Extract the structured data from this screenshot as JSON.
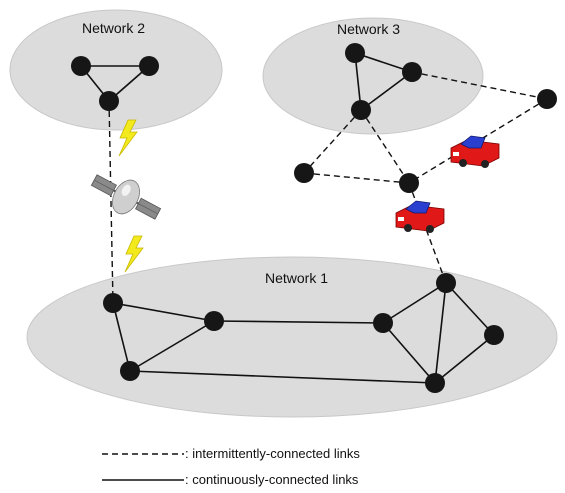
{
  "networks": [
    {
      "id": "network-1",
      "label": "Network 1"
    },
    {
      "id": "network-2",
      "label": "Network 2"
    },
    {
      "id": "network-3",
      "label": "Network 3"
    }
  ],
  "legend": {
    "dashed_label": ": intermittently-connected links",
    "solid_label": ": continuously-connected  links"
  },
  "icons": [
    "satellite-icon",
    "lightning-icon",
    "car-icon"
  ],
  "colors": {
    "network_fill": "#dcdcdc",
    "node": "#161616",
    "car_body": "#e01818",
    "car_roof": "#2a3fd0",
    "lightning": "#f2ea1c"
  }
}
